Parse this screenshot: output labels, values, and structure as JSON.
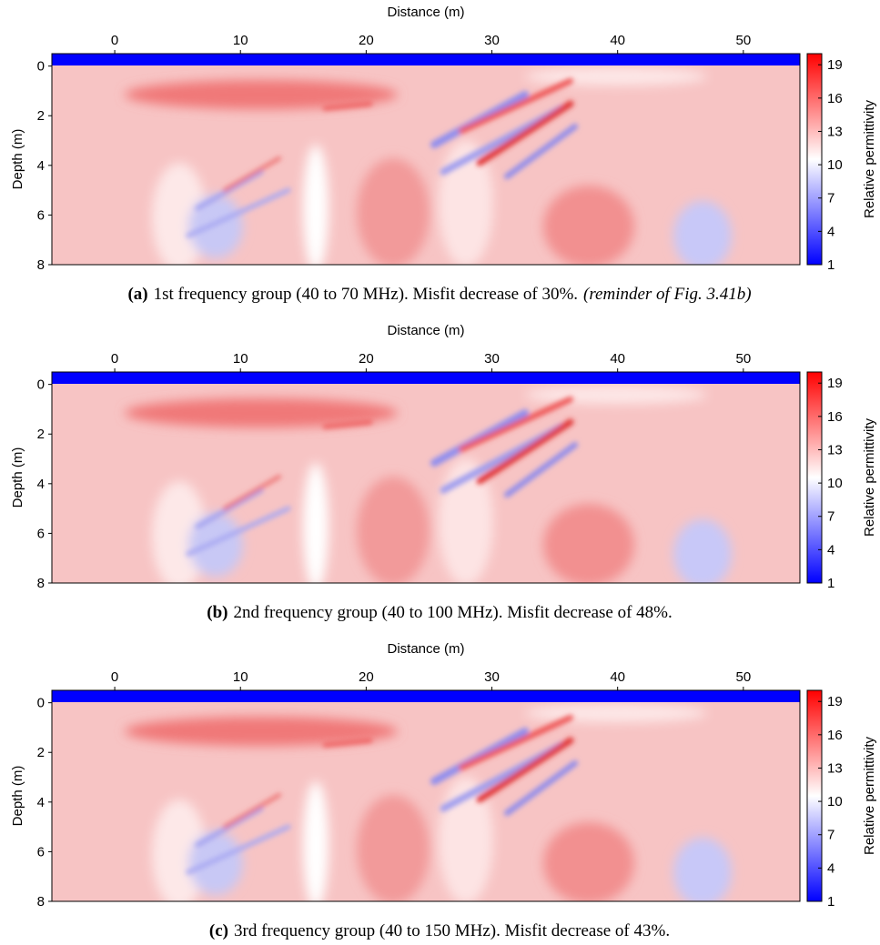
{
  "charts": [
    {
      "type": "heatmap",
      "x_label": "Distance (m)",
      "y_label": "Depth (m)",
      "colorbar_label": "Relative permittivity",
      "xlim": [
        -5,
        54.5
      ],
      "xticks": [
        0,
        10,
        20,
        30,
        40,
        50
      ],
      "ylim": [
        -0.5,
        8
      ],
      "yticks": [
        0,
        2,
        4,
        6,
        8
      ],
      "y_inverted": true,
      "clim": [
        1,
        20
      ],
      "cticks": [
        1,
        4,
        7,
        10,
        13,
        16,
        19
      ],
      "colormap": [
        "#0000ff",
        "#ffffff",
        "#ff0000"
      ],
      "caption": {
        "label": "(a)",
        "text": "1st frequency group (40 to 70 MHz). Misfit decrease of 30%.",
        "note": "(reminder of Fig. 3.41b)"
      }
    },
    {
      "type": "heatmap",
      "x_label": "Distance (m)",
      "y_label": "Depth (m)",
      "colorbar_label": "Relative permittivity",
      "xlim": [
        -5,
        54.5
      ],
      "xticks": [
        0,
        10,
        20,
        30,
        40,
        50
      ],
      "ylim": [
        -0.5,
        8
      ],
      "yticks": [
        0,
        2,
        4,
        6,
        8
      ],
      "y_inverted": true,
      "clim": [
        1,
        20
      ],
      "cticks": [
        1,
        4,
        7,
        10,
        13,
        16,
        19
      ],
      "colormap": [
        "#0000ff",
        "#ffffff",
        "#ff0000"
      ],
      "caption": {
        "label": "(b)",
        "text": "2nd frequency group (40 to 100 MHz). Misfit decrease of 48%."
      }
    },
    {
      "type": "heatmap",
      "x_label": "Distance (m)",
      "y_label": "Depth (m)",
      "colorbar_label": "Relative permittivity",
      "xlim": [
        -5,
        54.5
      ],
      "xticks": [
        0,
        10,
        20,
        30,
        40,
        50
      ],
      "ylim": [
        -0.5,
        8
      ],
      "yticks": [
        0,
        2,
        4,
        6,
        8
      ],
      "y_inverted": true,
      "clim": [
        1,
        20
      ],
      "cticks": [
        1,
        4,
        7,
        10,
        13,
        16,
        19
      ],
      "colormap": [
        "#0000ff",
        "#ffffff",
        "#ff0000"
      ],
      "caption": {
        "label": "(c)",
        "text": "3rd frequency group (40 to 150 MHz). Misfit decrease of 43%."
      }
    }
  ]
}
